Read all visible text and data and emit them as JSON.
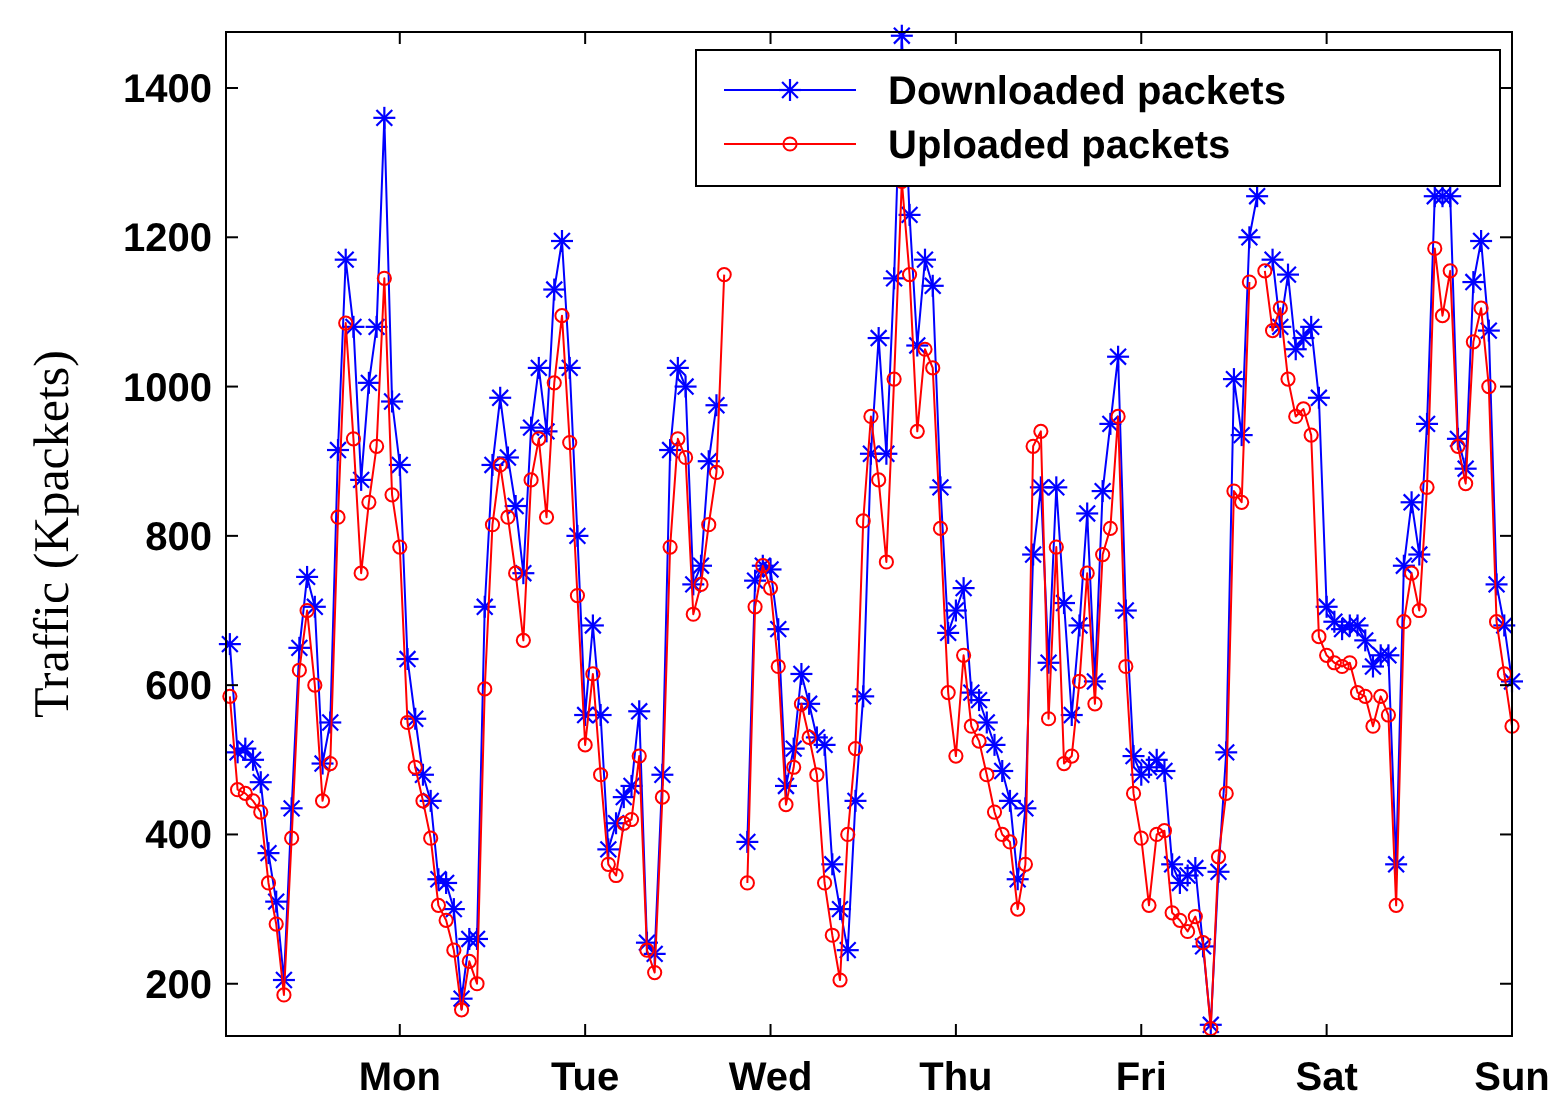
{
  "chart_data": {
    "type": "line",
    "ylabel": "Traffic (Kpackets)",
    "categories": [
      null,
      null,
      null,
      null,
      null,
      null,
      null,
      null,
      null,
      null,
      null,
      null,
      null,
      null,
      null,
      null,
      null,
      null,
      null,
      null,
      null,
      null,
      "Mon",
      null,
      null,
      null,
      null,
      null,
      null,
      null,
      null,
      null,
      null,
      null,
      null,
      null,
      null,
      null,
      null,
      null,
      null,
      null,
      null,
      null,
      null,
      null,
      "Tue",
      null,
      null,
      null,
      null,
      null,
      null,
      null,
      null,
      null,
      null,
      null,
      null,
      null,
      null,
      null,
      null,
      null,
      null,
      null,
      null,
      null,
      null,
      null,
      "Wed",
      null,
      null,
      null,
      null,
      null,
      null,
      null,
      null,
      null,
      null,
      null,
      null,
      null,
      null,
      null,
      null,
      null,
      null,
      null,
      null,
      null,
      null,
      null,
      "Thu",
      null,
      null,
      null,
      null,
      null,
      null,
      null,
      null,
      null,
      null,
      null,
      null,
      null,
      null,
      null,
      null,
      null,
      null,
      null,
      null,
      null,
      null,
      null,
      "Fri",
      null,
      null,
      null,
      null,
      null,
      null,
      null,
      null,
      null,
      null,
      null,
      null,
      null,
      null,
      null,
      null,
      null,
      null,
      null,
      null,
      null,
      null,
      null,
      "Sat",
      null,
      null,
      null,
      null,
      null,
      null,
      null,
      null,
      null,
      null,
      null,
      null,
      null,
      null,
      null,
      null,
      null,
      null,
      null,
      null,
      null,
      null,
      null,
      "Sun"
    ],
    "ylim": [
      130,
      1475
    ],
    "yticks": [
      200,
      400,
      600,
      800,
      1000,
      1200,
      1400
    ],
    "grid": false,
    "legend": "top right",
    "line_style": "solid",
    "series": [
      {
        "name": "Downloaded packets",
        "color": "#0000ff",
        "marker": "cross",
        "values": [
          655,
          510,
          515,
          500,
          470,
          375,
          310,
          205,
          435,
          650,
          745,
          705,
          495,
          550,
          915,
          1170,
          1080,
          875,
          1005,
          1080,
          1360,
          980,
          895,
          635,
          555,
          480,
          445,
          340,
          335,
          300,
          180,
          260,
          260,
          705,
          895,
          985,
          905,
          840,
          750,
          945,
          1025,
          940,
          1130,
          1195,
          1025,
          800,
          560,
          680,
          560,
          380,
          415,
          450,
          465,
          565,
          255,
          240,
          480,
          915,
          1025,
          1000,
          735,
          760,
          900,
          975,
          null,
          null,
          null,
          390,
          740,
          760,
          755,
          675,
          465,
          515,
          615,
          575,
          530,
          520,
          360,
          300,
          245,
          445,
          585,
          910,
          1065,
          910,
          1145,
          1470,
          1230,
          1055,
          1170,
          1135,
          865,
          670,
          700,
          730,
          590,
          580,
          550,
          520,
          485,
          445,
          340,
          435,
          775,
          865,
          630,
          865,
          710,
          560,
          680,
          830,
          605,
          860,
          950,
          1040,
          700,
          505,
          480,
          490,
          500,
          485,
          360,
          335,
          345,
          355,
          250,
          145,
          350,
          510,
          1010,
          935,
          1200,
          1255,
          null,
          1170,
          1080,
          1150,
          1050,
          1065,
          1080,
          985,
          705,
          685,
          675,
          680,
          680,
          660,
          625,
          640,
          640,
          360,
          760,
          845,
          775,
          950,
          1255,
          1255,
          1255,
          930,
          890,
          1140,
          1195,
          1075,
          735,
          680,
          605
        ]
      },
      {
        "name": "Uploaded packets",
        "color": "#ff0000",
        "marker": "circle",
        "values": [
          585,
          460,
          455,
          445,
          430,
          335,
          280,
          185,
          395,
          620,
          700,
          600,
          445,
          495,
          825,
          1085,
          930,
          750,
          845,
          920,
          1145,
          855,
          785,
          550,
          490,
          445,
          395,
          305,
          285,
          245,
          165,
          230,
          200,
          595,
          815,
          895,
          825,
          750,
          660,
          875,
          930,
          825,
          1005,
          1095,
          925,
          720,
          520,
          615,
          480,
          360,
          345,
          415,
          420,
          505,
          245,
          215,
          450,
          785,
          930,
          905,
          695,
          735,
          815,
          885,
          1150,
          null,
          null,
          335,
          705,
          760,
          730,
          625,
          440,
          490,
          575,
          530,
          480,
          335,
          265,
          205,
          400,
          515,
          820,
          960,
          875,
          765,
          1010,
          1275,
          1150,
          940,
          1050,
          1025,
          810,
          590,
          505,
          640,
          545,
          525,
          480,
          430,
          400,
          390,
          300,
          360,
          920,
          940,
          555,
          785,
          495,
          505,
          605,
          750,
          575,
          775,
          810,
          960,
          625,
          455,
          395,
          305,
          400,
          405,
          295,
          285,
          270,
          290,
          255,
          140,
          370,
          455,
          860,
          845,
          1140,
          null,
          1155,
          1075,
          1105,
          1010,
          960,
          970,
          935,
          665,
          640,
          630,
          625,
          630,
          590,
          585,
          545,
          585,
          560,
          305,
          685,
          750,
          700,
          865,
          1185,
          1095,
          1155,
          920,
          870,
          1060,
          1105,
          1000,
          685,
          615,
          545
        ]
      }
    ]
  }
}
